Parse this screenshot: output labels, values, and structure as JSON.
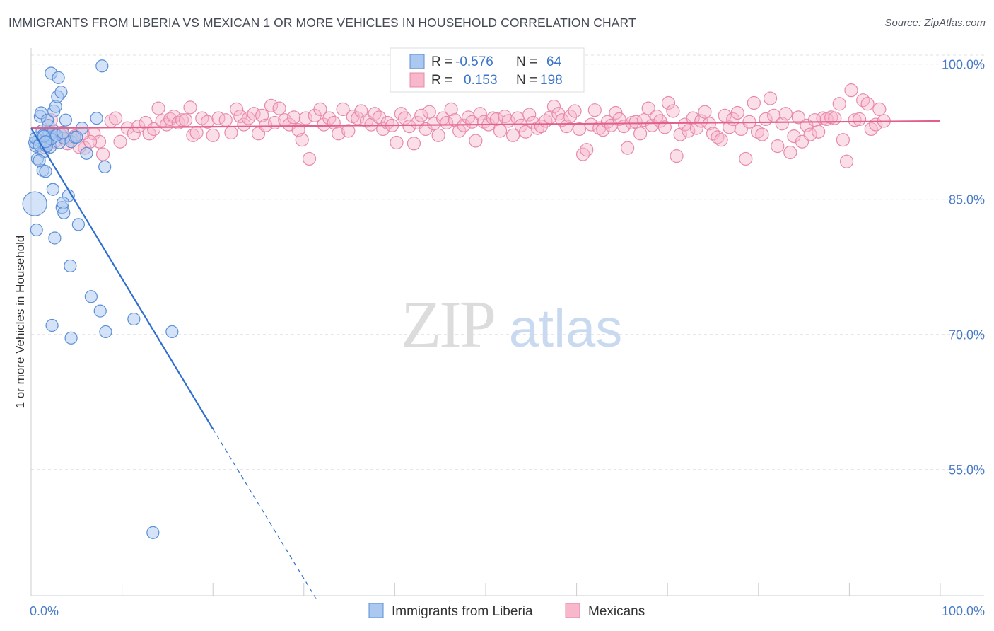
{
  "title": "IMMIGRANTS FROM LIBERIA VS MEXICAN 1 OR MORE VEHICLES IN HOUSEHOLD CORRELATION CHART",
  "source": "Source: ZipAtlas.com",
  "watermark": {
    "zip": "ZIP",
    "atlas": "atlas"
  },
  "colors": {
    "blue_fill": "#aac8f0",
    "blue_stroke": "#5b8fd6",
    "blue_line": "#2e6fd0",
    "pink_fill": "#f7b8cc",
    "pink_stroke": "#e889a8",
    "pink_line": "#e0608a",
    "value_text": "#3a74c8",
    "grid": "#dde1e6"
  },
  "legend": {
    "rows": [
      {
        "r_label": "R =",
        "r_value": "-0.576",
        "n_label": "N =",
        "n_value": "64"
      },
      {
        "r_label": "R =",
        "r_value": "0.153",
        "n_label": "N =",
        "n_value": "198"
      }
    ]
  },
  "chart_data": {
    "type": "scatter",
    "title": "IMMIGRANTS FROM LIBERIA VS MEXICAN 1 OR MORE VEHICLES IN HOUSEHOLD CORRELATION CHART",
    "xlabel": "",
    "ylabel": "1 or more Vehicles in Household",
    "xlim": [
      0,
      100
    ],
    "ylim": [
      41.0,
      101.0
    ],
    "x_tick_labels": [
      "0.0%",
      "100.0%"
    ],
    "y_ticks": [
      100.0,
      85.0,
      70.0,
      55.0
    ],
    "y_tick_labels": [
      "100.0%",
      "85.0%",
      "70.0%",
      "55.0%"
    ],
    "grid": "horizontal dashed",
    "legend_position": "top-center",
    "series": [
      {
        "name": "Immigrants from Liberia",
        "color": "blue",
        "r": -0.576,
        "n": 64,
        "trend": {
          "x": [
            0,
            20
          ],
          "y": [
            92.9,
            59.5
          ],
          "dash_x": [
            20,
            31.5
          ],
          "dash_y": [
            59.5,
            40.4
          ]
        },
        "points": [
          [
            0.4,
            84.5
          ],
          [
            0.6,
            81.6
          ],
          [
            0.5,
            90.9
          ],
          [
            0.7,
            89.5
          ],
          [
            0.8,
            91.6
          ],
          [
            1.0,
            94.2
          ],
          [
            1.1,
            94.6
          ],
          [
            1.2,
            92.6
          ],
          [
            1.3,
            88.2
          ],
          [
            1.4,
            90.3
          ],
          [
            1.5,
            91.1
          ],
          [
            1.6,
            88.1
          ],
          [
            1.7,
            91.5
          ],
          [
            1.8,
            93.8
          ],
          [
            1.9,
            92.1
          ],
          [
            2.0,
            92.3
          ],
          [
            2.1,
            90.8
          ],
          [
            2.2,
            99.0
          ],
          [
            2.3,
            91.9
          ],
          [
            2.4,
            86.1
          ],
          [
            2.5,
            94.8
          ],
          [
            2.6,
            80.7
          ],
          [
            2.7,
            95.3
          ],
          [
            2.9,
            96.4
          ],
          [
            3.0,
            98.5
          ],
          [
            3.1,
            91.3
          ],
          [
            3.3,
            96.9
          ],
          [
            3.4,
            84.1
          ],
          [
            3.6,
            91.8
          ],
          [
            3.8,
            93.8
          ],
          [
            4.1,
            85.4
          ],
          [
            4.4,
            91.4
          ],
          [
            4.8,
            91.9
          ],
          [
            5.2,
            82.2
          ],
          [
            5.6,
            92.9
          ],
          [
            6.1,
            90.1
          ],
          [
            6.6,
            74.2
          ],
          [
            7.2,
            94.0
          ],
          [
            7.6,
            72.6
          ],
          [
            7.8,
            99.8
          ],
          [
            8.1,
            88.6
          ],
          [
            8.2,
            70.3
          ],
          [
            11.3,
            71.7
          ],
          [
            13.4,
            48.0
          ],
          [
            15.5,
            70.3
          ],
          [
            0.9,
            89.3
          ],
          [
            1.9,
            93.2
          ],
          [
            2.5,
            92.6
          ],
          [
            0.4,
            91.3
          ],
          [
            1.3,
            92.1
          ],
          [
            3.5,
            84.6
          ],
          [
            3.6,
            83.5
          ],
          [
            4.3,
            77.6
          ],
          [
            2.3,
            71.0
          ],
          [
            4.4,
            69.6
          ],
          [
            0.5,
            91.8
          ],
          [
            0.9,
            91.0
          ],
          [
            1.7,
            90.9
          ],
          [
            2.2,
            91.7
          ],
          [
            2.8,
            92.1
          ],
          [
            1.4,
            92.0
          ],
          [
            3.5,
            92.4
          ],
          [
            5.0,
            91.9
          ],
          [
            1.6,
            91.4
          ]
        ]
      },
      {
        "name": "Mexicans",
        "color": "pink",
        "r": 0.153,
        "n": 198,
        "trend": {
          "x": [
            0,
            100
          ],
          "y": [
            92.9,
            93.7
          ]
        },
        "points": [
          [
            1.5,
            90.8
          ],
          [
            2.6,
            91.4
          ],
          [
            3.4,
            92.4
          ],
          [
            4.8,
            92.0
          ],
          [
            5.9,
            90.7
          ],
          [
            6.9,
            92.3
          ],
          [
            7.5,
            91.4
          ],
          [
            7.9,
            90.0
          ],
          [
            8.8,
            93.7
          ],
          [
            9.3,
            94.0
          ],
          [
            9.8,
            91.4
          ],
          [
            10.6,
            92.9
          ],
          [
            11.3,
            92.3
          ],
          [
            11.8,
            93.1
          ],
          [
            12.6,
            93.5
          ],
          [
            13.0,
            92.3
          ],
          [
            13.5,
            92.8
          ],
          [
            14.0,
            95.1
          ],
          [
            14.4,
            93.7
          ],
          [
            14.9,
            93.3
          ],
          [
            15.3,
            93.9
          ],
          [
            15.7,
            94.2
          ],
          [
            16.2,
            93.5
          ],
          [
            16.6,
            93.8
          ],
          [
            17.0,
            93.8
          ],
          [
            17.5,
            95.2
          ],
          [
            17.8,
            92.1
          ],
          [
            18.2,
            92.4
          ],
          [
            18.8,
            94.0
          ],
          [
            19.4,
            93.6
          ],
          [
            20.0,
            92.1
          ],
          [
            20.6,
            94.0
          ],
          [
            21.4,
            93.8
          ],
          [
            22.0,
            92.4
          ],
          [
            22.6,
            95.0
          ],
          [
            23.0,
            94.2
          ],
          [
            23.4,
            93.3
          ],
          [
            23.9,
            94.0
          ],
          [
            24.5,
            94.5
          ],
          [
            25.0,
            92.3
          ],
          [
            25.4,
            94.3
          ],
          [
            25.8,
            93.2
          ],
          [
            26.4,
            95.4
          ],
          [
            26.8,
            93.5
          ],
          [
            27.3,
            95.1
          ],
          [
            27.9,
            93.8
          ],
          [
            28.4,
            93.3
          ],
          [
            28.9,
            94.1
          ],
          [
            29.4,
            92.7
          ],
          [
            29.8,
            91.6
          ],
          [
            30.2,
            94.0
          ],
          [
            30.6,
            89.5
          ],
          [
            31.2,
            94.3
          ],
          [
            31.8,
            95.0
          ],
          [
            32.2,
            93.3
          ],
          [
            32.8,
            94.0
          ],
          [
            33.3,
            93.5
          ],
          [
            33.8,
            92.3
          ],
          [
            34.3,
            95.0
          ],
          [
            34.9,
            92.6
          ],
          [
            35.4,
            94.2
          ],
          [
            35.9,
            94.0
          ],
          [
            36.3,
            94.8
          ],
          [
            36.9,
            93.7
          ],
          [
            37.4,
            93.3
          ],
          [
            37.8,
            94.5
          ],
          [
            38.3,
            94.1
          ],
          [
            38.7,
            92.8
          ],
          [
            39.2,
            93.5
          ],
          [
            39.7,
            93.2
          ],
          [
            40.2,
            91.3
          ],
          [
            40.7,
            94.5
          ],
          [
            41.1,
            94.0
          ],
          [
            41.6,
            93.1
          ],
          [
            42.1,
            91.2
          ],
          [
            42.5,
            93.5
          ],
          [
            42.9,
            94.3
          ],
          [
            43.4,
            92.8
          ],
          [
            43.8,
            94.7
          ],
          [
            44.3,
            93.4
          ],
          [
            44.8,
            92.1
          ],
          [
            45.3,
            94.0
          ],
          [
            45.7,
            93.5
          ],
          [
            46.2,
            95.0
          ],
          [
            46.6,
            93.8
          ],
          [
            47.1,
            92.6
          ],
          [
            47.6,
            93.2
          ],
          [
            48.1,
            94.1
          ],
          [
            48.5,
            93.6
          ],
          [
            48.9,
            91.5
          ],
          [
            49.4,
            94.5
          ],
          [
            49.8,
            93.6
          ],
          [
            50.3,
            93.3
          ],
          [
            50.8,
            94.0
          ],
          [
            51.2,
            93.9
          ],
          [
            51.6,
            92.6
          ],
          [
            52.1,
            94.2
          ],
          [
            52.5,
            93.7
          ],
          [
            53.0,
            92.1
          ],
          [
            53.5,
            94.0
          ],
          [
            53.9,
            93.2
          ],
          [
            54.4,
            92.5
          ],
          [
            54.8,
            94.4
          ],
          [
            55.2,
            93.5
          ],
          [
            55.7,
            92.9
          ],
          [
            56.1,
            93.1
          ],
          [
            56.6,
            93.7
          ],
          [
            57.1,
            94.1
          ],
          [
            57.5,
            95.3
          ],
          [
            58.0,
            94.5
          ],
          [
            58.4,
            93.8
          ],
          [
            58.9,
            93.1
          ],
          [
            59.3,
            94.2
          ],
          [
            59.8,
            94.8
          ],
          [
            60.3,
            92.8
          ],
          [
            60.7,
            90.0
          ],
          [
            61.1,
            90.5
          ],
          [
            61.6,
            93.3
          ],
          [
            62.0,
            94.9
          ],
          [
            62.5,
            92.9
          ],
          [
            62.9,
            92.7
          ],
          [
            63.4,
            93.6
          ],
          [
            63.8,
            93.2
          ],
          [
            64.3,
            94.6
          ],
          [
            64.7,
            93.9
          ],
          [
            65.2,
            93.1
          ],
          [
            65.6,
            90.7
          ],
          [
            66.1,
            93.5
          ],
          [
            66.5,
            93.6
          ],
          [
            67.0,
            92.3
          ],
          [
            67.4,
            93.8
          ],
          [
            67.9,
            95.1
          ],
          [
            68.3,
            93.2
          ],
          [
            68.8,
            94.2
          ],
          [
            69.2,
            93.7
          ],
          [
            69.7,
            93.0
          ],
          [
            70.1,
            95.7
          ],
          [
            70.6,
            94.8
          ],
          [
            71.0,
            89.8
          ],
          [
            71.4,
            92.2
          ],
          [
            71.9,
            93.3
          ],
          [
            72.3,
            92.6
          ],
          [
            72.8,
            94.0
          ],
          [
            73.2,
            92.9
          ],
          [
            73.7,
            93.7
          ],
          [
            74.1,
            94.7
          ],
          [
            74.6,
            93.4
          ],
          [
            75.0,
            92.3
          ],
          [
            75.5,
            91.9
          ],
          [
            75.9,
            91.6
          ],
          [
            76.3,
            94.3
          ],
          [
            76.8,
            93.0
          ],
          [
            77.2,
            93.9
          ],
          [
            77.7,
            94.6
          ],
          [
            78.1,
            92.8
          ],
          [
            78.6,
            89.5
          ],
          [
            79.0,
            93.6
          ],
          [
            79.5,
            95.7
          ],
          [
            79.9,
            92.5
          ],
          [
            80.4,
            92.2
          ],
          [
            80.8,
            93.9
          ],
          [
            81.3,
            96.2
          ],
          [
            81.7,
            94.3
          ],
          [
            82.1,
            90.9
          ],
          [
            82.6,
            93.4
          ],
          [
            83.0,
            94.5
          ],
          [
            83.5,
            90.2
          ],
          [
            83.9,
            92.0
          ],
          [
            84.4,
            94.1
          ],
          [
            84.8,
            91.4
          ],
          [
            85.3,
            93.2
          ],
          [
            85.7,
            92.2
          ],
          [
            86.2,
            93.8
          ],
          [
            86.6,
            92.5
          ],
          [
            87.1,
            94.0
          ],
          [
            87.5,
            93.9
          ],
          [
            88.0,
            94.1
          ],
          [
            88.4,
            94.0
          ],
          [
            88.9,
            95.6
          ],
          [
            89.3,
            91.6
          ],
          [
            89.7,
            89.2
          ],
          [
            90.2,
            97.1
          ],
          [
            90.6,
            93.8
          ],
          [
            91.1,
            93.9
          ],
          [
            91.5,
            96.0
          ],
          [
            92.0,
            95.6
          ],
          [
            92.4,
            92.8
          ],
          [
            92.9,
            93.3
          ],
          [
            93.3,
            95.0
          ],
          [
            93.8,
            93.7
          ],
          [
            2.2,
            93.8
          ],
          [
            3.3,
            92.1
          ],
          [
            3.9,
            91.8
          ],
          [
            4.5,
            91.6
          ],
          [
            5.3,
            90.8
          ],
          [
            6.5,
            91.4
          ],
          [
            4.0,
            91.2
          ],
          [
            5.7,
            92.3
          ]
        ]
      }
    ]
  },
  "bottom_legend": [
    {
      "label": "Immigrants from Liberia"
    },
    {
      "label": "Mexicans"
    }
  ]
}
